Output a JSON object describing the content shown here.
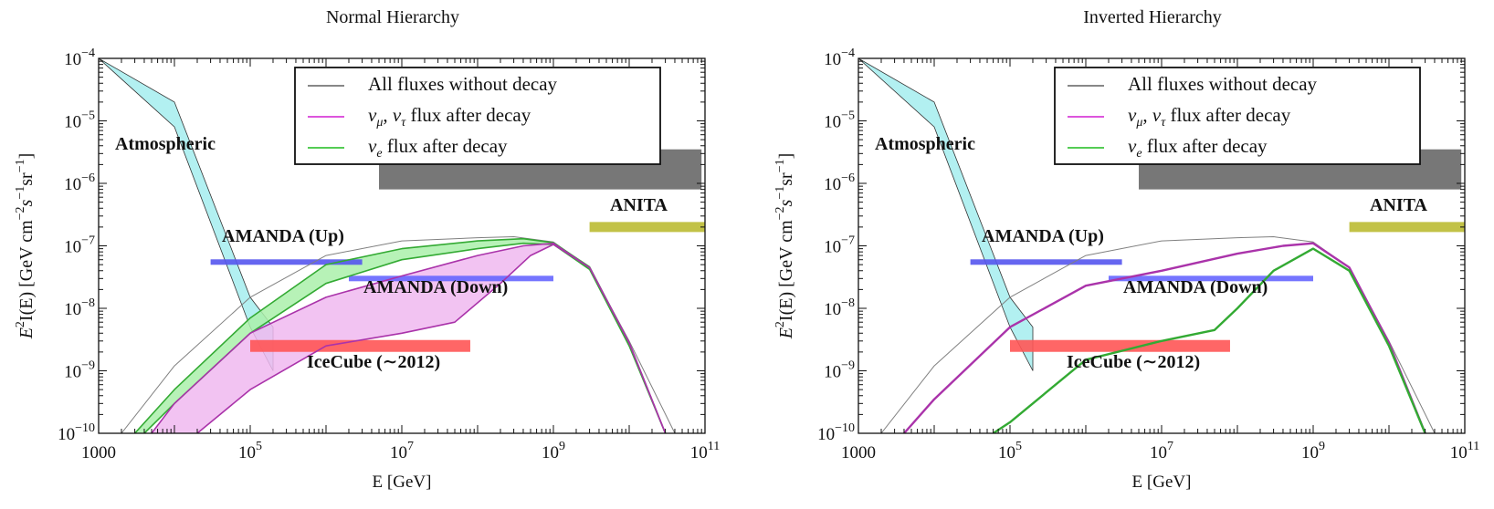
{
  "chart_data": [
    {
      "type": "line",
      "title": "Normal Hierarchy",
      "xlabel": "E [GeV]",
      "ylabel_parts": [
        "E",
        "2",
        "I(E)  [GeV cm",
        "−2",
        "s",
        "−1",
        "sr",
        "−1",
        "]"
      ],
      "xscale": "log",
      "yscale": "log",
      "xlim": [
        1000,
        100000000000
      ],
      "ylim": [
        1e-10,
        0.0001
      ],
      "x_ticks": [
        {
          "value": 1000,
          "base": "1000",
          "exp": ""
        },
        {
          "value": 100000,
          "base": "10",
          "exp": "5"
        },
        {
          "value": 10000000,
          "base": "10",
          "exp": "7"
        },
        {
          "value": 1000000000,
          "base": "10",
          "exp": "9"
        },
        {
          "value": 100000000000,
          "base": "10",
          "exp": "11"
        }
      ],
      "y_ticks": [
        {
          "value": 0.0001,
          "base": "10",
          "exp": "−4"
        },
        {
          "value": 1e-05,
          "base": "10",
          "exp": "−5"
        },
        {
          "value": 1e-06,
          "base": "10",
          "exp": "−6"
        },
        {
          "value": 1e-07,
          "base": "10",
          "exp": "−7"
        },
        {
          "value": 1e-08,
          "base": "10",
          "exp": "−8"
        },
        {
          "value": 1e-09,
          "base": "10",
          "exp": "−9"
        },
        {
          "value": 1e-10,
          "base": "10",
          "exp": "−10"
        }
      ],
      "legend": {
        "position": "top-right",
        "entries": [
          {
            "label": "All fluxes without decay",
            "color": "#888888"
          },
          {
            "label": "ν<sub>μ</sub>, ν<sub>τ</sub>  flux after decay",
            "color": "#dd55dd"
          },
          {
            "label": "ν<sub>e</sub>  flux after decay",
            "color": "#55cc55"
          }
        ]
      },
      "series": [
        {
          "name": "All fluxes without decay",
          "color": "#808080",
          "x": [
            2000,
            10000,
            100000,
            1000000,
            10000000,
            100000000,
            300000000,
            1000000000,
            3000000000,
            10000000000,
            40000000000
          ],
          "y": [
            1e-10,
            1.2e-09,
            1.5e-08,
            7e-08,
            1.2e-07,
            1.35e-07,
            1.4e-07,
            1.15e-07,
            4.5e-08,
            3e-09,
            1e-10
          ]
        },
        {
          "name": "ν_e flux after decay (band low)",
          "color": "#33aa33",
          "x": [
            4000,
            10000,
            100000,
            1000000,
            10000000,
            100000000,
            400000000,
            1000000000,
            3000000000,
            10000000000,
            30000000000
          ],
          "y": [
            1e-10,
            3e-10,
            4e-09,
            2.5e-08,
            6e-08,
            9e-08,
            1.1e-07,
            1.05e-07,
            4.2e-08,
            2.5e-09,
            1e-10
          ]
        },
        {
          "name": "ν_e flux after decay (band high)",
          "color": "#33aa33",
          "x": [
            3000,
            10000,
            100000,
            1000000,
            10000000,
            100000000,
            400000000,
            1000000000,
            3000000000,
            10000000000,
            30000000000
          ],
          "y": [
            1e-10,
            5e-10,
            7e-09,
            5e-08,
            9e-08,
            1.2e-07,
            1.3e-07,
            1.12e-07,
            4.6e-08,
            2.8e-09,
            1e-10
          ]
        },
        {
          "name": "ν_μ, ν_τ flux after decay (band low)",
          "color": "#aa33aa",
          "x": [
            20000,
            100000,
            1000000,
            10000000,
            50000000,
            200000000,
            500000000,
            1000000000,
            3000000000,
            10000000000,
            30000000000
          ],
          "y": [
            1e-10,
            5e-10,
            2.5e-09,
            4e-09,
            6e-09,
            2.5e-08,
            7e-08,
            1.05e-07,
            4.5e-08,
            2.8e-09,
            1e-10
          ]
        },
        {
          "name": "ν_μ, ν_τ flux after decay (band high)",
          "color": "#aa33aa",
          "x": [
            5000,
            10000,
            100000,
            1000000,
            10000000,
            100000000,
            400000000,
            1000000000,
            3000000000,
            10000000000,
            30000000000
          ],
          "y": [
            1e-10,
            3e-10,
            4e-09,
            1.5e-08,
            3.3e-08,
            7e-08,
            1e-07,
            1.1e-07,
            4.5e-08,
            2.8e-09,
            1e-10
          ]
        }
      ],
      "bands": [
        {
          "name": "Atmospheric",
          "label": "Atmospheric",
          "color": "#aaeef0",
          "x_low": [
            1000,
            10000,
            100000,
            200000
          ],
          "y_low": [
            0.0001,
            8e-06,
            5e-09,
            1e-09
          ],
          "x_high": [
            1000,
            10000,
            100000,
            200000
          ],
          "y_high": [
            0.0001,
            2e-05,
            1.5e-08,
            5e-09
          ]
        }
      ],
      "limits": [
        {
          "name": "AMANDA (Up)",
          "label": "AMANDA (Up)",
          "color": "#5555ee",
          "xmin": 30000,
          "xmax": 3000000,
          "y": 5.5e-08
        },
        {
          "name": "AMANDA (Down)",
          "label": "AMANDA (Down)",
          "color": "#6666ff",
          "xmin": 2000000,
          "xmax": 1000000000,
          "y": 3e-08
        },
        {
          "name": "IceCube (~2012)",
          "label": "IceCube (∼2012)",
          "color": "#ff5555",
          "xmin": 100000,
          "xmax": 80000000,
          "y": 2.5e-09
        },
        {
          "name": "ANITA",
          "label": "ANITA",
          "color": "#bbbb33",
          "xmin": 3000000000,
          "xmax": 100000000000,
          "y": 2e-07
        },
        {
          "name": "Auger/HiRes box",
          "label": "",
          "color": "#777777",
          "xmin": 5000000,
          "xmax": 90000000000,
          "ymin": 8e-07,
          "ymax": 3.5e-06
        }
      ]
    },
    {
      "type": "line",
      "title": "Inverted Hierarchy",
      "xlabel": "E [GeV]",
      "ylabel_parts": [
        "E",
        "2",
        "I(E)  [GeV cm",
        "−2",
        "s",
        "−1",
        "sr",
        "−1",
        "]"
      ],
      "xscale": "log",
      "yscale": "log",
      "xlim": [
        1000,
        100000000000
      ],
      "ylim": [
        1e-10,
        0.0001
      ],
      "x_ticks": [
        {
          "value": 1000,
          "base": "1000",
          "exp": ""
        },
        {
          "value": 100000,
          "base": "10",
          "exp": "5"
        },
        {
          "value": 10000000,
          "base": "10",
          "exp": "7"
        },
        {
          "value": 1000000000,
          "base": "10",
          "exp": "9"
        },
        {
          "value": 100000000000,
          "base": "10",
          "exp": "11"
        }
      ],
      "y_ticks": [
        {
          "value": 0.0001,
          "base": "10",
          "exp": "−4"
        },
        {
          "value": 1e-05,
          "base": "10",
          "exp": "−5"
        },
        {
          "value": 1e-06,
          "base": "10",
          "exp": "−6"
        },
        {
          "value": 1e-07,
          "base": "10",
          "exp": "−7"
        },
        {
          "value": 1e-08,
          "base": "10",
          "exp": "−8"
        },
        {
          "value": 1e-09,
          "base": "10",
          "exp": "−9"
        },
        {
          "value": 1e-10,
          "base": "10",
          "exp": "−10"
        }
      ],
      "legend": {
        "position": "top-right",
        "entries": [
          {
            "label": "All fluxes without decay",
            "color": "#888888"
          },
          {
            "label": "ν<sub>μ</sub>, ν<sub>τ</sub>  flux after decay",
            "color": "#dd55dd"
          },
          {
            "label": "ν<sub>e</sub>  flux after decay",
            "color": "#55cc55"
          }
        ]
      },
      "series": [
        {
          "name": "All fluxes without decay",
          "color": "#808080",
          "x": [
            2000,
            10000,
            100000,
            1000000,
            10000000,
            100000000,
            300000000,
            1000000000,
            3000000000,
            10000000000,
            40000000000
          ],
          "y": [
            1e-10,
            1.2e-09,
            1.5e-08,
            7e-08,
            1.2e-07,
            1.35e-07,
            1.4e-07,
            1.15e-07,
            4.5e-08,
            3e-09,
            1e-10
          ]
        },
        {
          "name": "ν_μ, ν_τ flux after decay",
          "color": "#aa33aa",
          "x": [
            4000,
            10000,
            100000,
            1000000,
            10000000,
            100000000,
            400000000,
            1000000000,
            3000000000,
            10000000000,
            30000000000
          ],
          "y": [
            1e-10,
            3.5e-10,
            5e-09,
            2.3e-08,
            4e-08,
            7.5e-08,
            1e-07,
            1.1e-07,
            4.5e-08,
            2.8e-09,
            1e-10
          ]
        },
        {
          "name": "ν_e flux after decay",
          "color": "#33aa33",
          "x": [
            60000,
            100000,
            1000000,
            10000000,
            50000000,
            100000000,
            300000000,
            1000000000,
            3000000000,
            10000000000,
            30000000000
          ],
          "y": [
            1e-10,
            1.5e-10,
            1.5e-09,
            3e-09,
            4.5e-09,
            1e-08,
            4e-08,
            9e-08,
            4e-08,
            2.5e-09,
            1e-10
          ]
        }
      ],
      "bands": [
        {
          "name": "Atmospheric",
          "label": "Atmospheric",
          "color": "#aaeef0",
          "x_low": [
            1000,
            10000,
            100000,
            200000
          ],
          "y_low": [
            0.0001,
            8e-06,
            5e-09,
            1e-09
          ],
          "x_high": [
            1000,
            10000,
            100000,
            200000
          ],
          "y_high": [
            0.0001,
            2e-05,
            1.5e-08,
            5e-09
          ]
        }
      ],
      "limits": [
        {
          "name": "AMANDA (Up)",
          "label": "AMANDA (Up)",
          "color": "#5555ee",
          "xmin": 30000,
          "xmax": 3000000,
          "y": 5.5e-08
        },
        {
          "name": "AMANDA (Down)",
          "label": "AMANDA (Down)",
          "color": "#6666ff",
          "xmin": 2000000,
          "xmax": 1000000000,
          "y": 3e-08
        },
        {
          "name": "IceCube (~2012)",
          "label": "IceCube (∼2012)",
          "color": "#ff5555",
          "xmin": 100000,
          "xmax": 80000000,
          "y": 2.5e-09
        },
        {
          "name": "ANITA",
          "label": "ANITA",
          "color": "#bbbb33",
          "xmin": 3000000000,
          "xmax": 100000000000,
          "y": 2e-07
        },
        {
          "name": "Auger/HiRes box",
          "label": "",
          "color": "#777777",
          "xmin": 5000000,
          "xmax": 90000000000,
          "ymin": 8e-07,
          "ymax": 3.5e-06
        }
      ]
    }
  ]
}
